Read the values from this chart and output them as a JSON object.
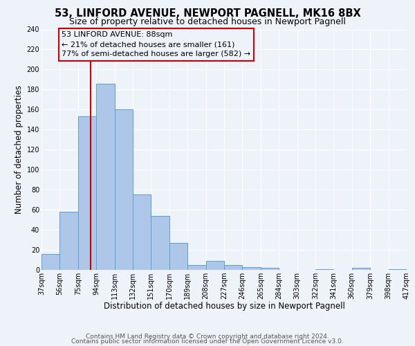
{
  "title": "53, LINFORD AVENUE, NEWPORT PAGNELL, MK16 8BX",
  "subtitle": "Size of property relative to detached houses in Newport Pagnell",
  "xlabel": "Distribution of detached houses by size in Newport Pagnell",
  "ylabel": "Number of detached properties",
  "bin_edges": [
    37,
    56,
    75,
    94,
    113,
    132,
    151,
    170,
    189,
    208,
    227,
    246,
    265,
    284,
    303,
    322,
    341,
    360,
    379,
    398,
    417
  ],
  "bin_heights": [
    16,
    58,
    153,
    186,
    160,
    75,
    54,
    27,
    5,
    9,
    5,
    3,
    2,
    0,
    0,
    1,
    0,
    2,
    0,
    1
  ],
  "bar_color": "#aec6e8",
  "bar_edge_color": "#5a9fd4",
  "property_value": 88,
  "vline_color": "#cc0000",
  "annotation_box_color": "#cc0000",
  "annotation_title": "53 LINFORD AVENUE: 88sqm",
  "annotation_line1": "← 21% of detached houses are smaller (161)",
  "annotation_line2": "77% of semi-detached houses are larger (582) →",
  "ylim": [
    0,
    240
  ],
  "yticks": [
    0,
    20,
    40,
    60,
    80,
    100,
    120,
    140,
    160,
    180,
    200,
    220,
    240
  ],
  "x_labels": [
    "37sqm",
    "56sqm",
    "75sqm",
    "94sqm",
    "113sqm",
    "132sqm",
    "151sqm",
    "170sqm",
    "189sqm",
    "208sqm",
    "227sqm",
    "246sqm",
    "265sqm",
    "284sqm",
    "303sqm",
    "322sqm",
    "341sqm",
    "360sqm",
    "379sqm",
    "398sqm",
    "417sqm"
  ],
  "footer1": "Contains HM Land Registry data © Crown copyright and database right 2024.",
  "footer2": "Contains public sector information licensed under the Open Government Licence v3.0.",
  "background_color": "#eef2f9",
  "grid_color": "#ffffff",
  "title_fontsize": 10.5,
  "subtitle_fontsize": 9,
  "axis_label_fontsize": 8.5,
  "tick_fontsize": 7,
  "footer_fontsize": 6.5,
  "annot_fontsize": 8
}
